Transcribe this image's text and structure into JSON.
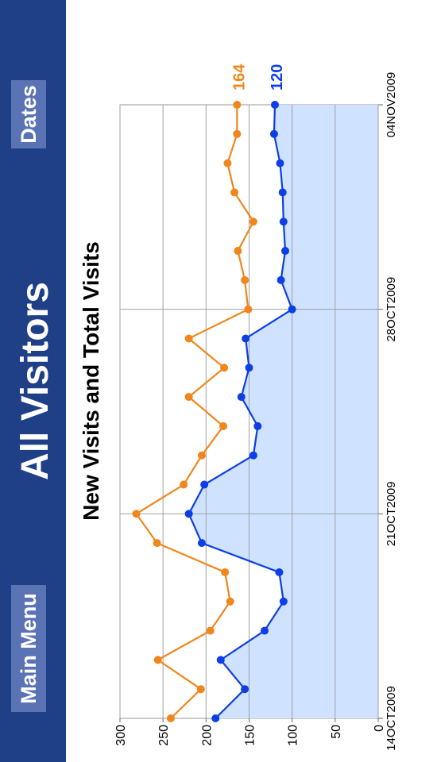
{
  "header": {
    "title": "All Visitors",
    "main_menu_label": "Main Menu",
    "dates_label": "Dates",
    "bar_color": "#1f3f86",
    "button_color": "#5a73b5"
  },
  "chart_data": {
    "type": "line",
    "title": "New Visits and Total Visits",
    "x": [
      "14OCT2009",
      "15OCT2009",
      "16OCT2009",
      "17OCT2009",
      "18OCT2009",
      "19OCT2009",
      "20OCT2009",
      "21OCT2009",
      "22OCT2009",
      "23OCT2009",
      "24OCT2009",
      "25OCT2009",
      "26OCT2009",
      "27OCT2009",
      "28OCT2009",
      "29OCT2009",
      "30OCT2009",
      "31OCT2009",
      "01NOV2009",
      "02NOV2009",
      "03NOV2009",
      "04NOV2009"
    ],
    "x_ticks": [
      "14OCT2009",
      "21OCT2009",
      "28OCT2009",
      "04NOV2009"
    ],
    "ylim": [
      0,
      300
    ],
    "y_ticks": [
      0,
      50,
      100,
      150,
      200,
      250,
      300
    ],
    "grid": true,
    "series": [
      {
        "color": "#f0861c",
        "end_label": "164",
        "values": [
          241,
          206,
          256,
          195,
          172,
          178,
          257,
          281,
          226,
          205,
          180,
          220,
          179,
          220,
          151,
          155,
          163,
          145,
          167,
          175,
          164,
          164
        ]
      },
      {
        "color": "#0d3ee6",
        "fill": "#cfe2ff",
        "end_label": "120",
        "values": [
          189,
          155,
          183,
          132,
          110,
          115,
          205,
          220,
          202,
          145,
          140,
          159,
          150,
          154,
          100,
          113,
          108,
          110,
          111,
          114,
          121,
          120
        ]
      }
    ]
  }
}
